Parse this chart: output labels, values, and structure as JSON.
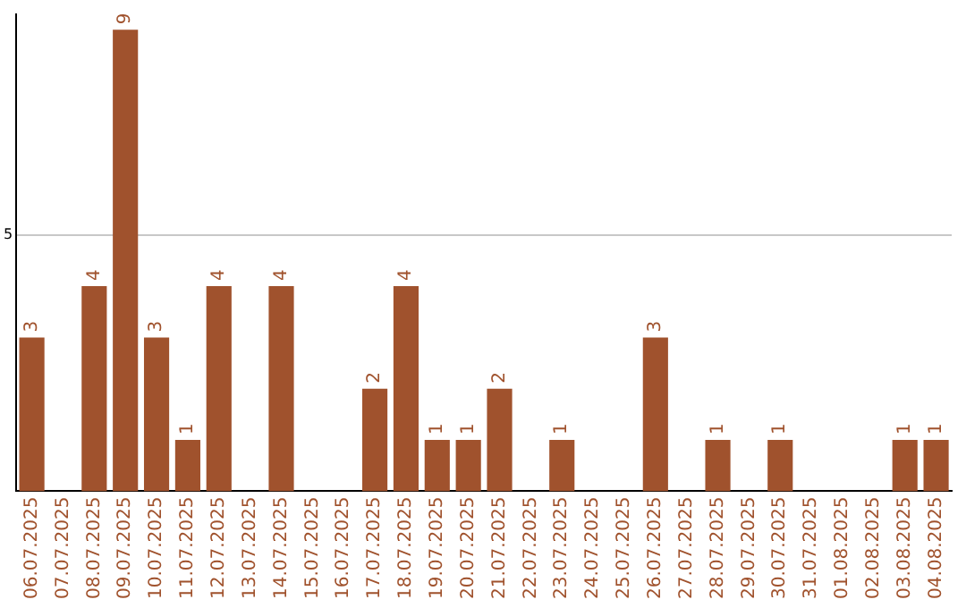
{
  "chart_data": {
    "type": "bar",
    "categories": [
      "06.07.2025",
      "07.07.2025",
      "08.07.2025",
      "09.07.2025",
      "10.07.2025",
      "11.07.2025",
      "12.07.2025",
      "13.07.2025",
      "14.07.2025",
      "15.07.2025",
      "16.07.2025",
      "17.07.2025",
      "18.07.2025",
      "19.07.2025",
      "20.07.2025",
      "21.07.2025",
      "22.07.2025",
      "23.07.2025",
      "24.07.2025",
      "25.07.2025",
      "26.07.2025",
      "27.07.2025",
      "28.07.2025",
      "29.07.2025",
      "30.07.2025",
      "31.07.2025",
      "01.08.2025",
      "02.08.2025",
      "03.08.2025",
      "04.08.2025"
    ],
    "values": [
      3,
      0,
      4,
      9,
      3,
      1,
      4,
      0,
      4,
      0,
      0,
      2,
      4,
      1,
      1,
      2,
      0,
      1,
      0,
      0,
      3,
      0,
      1,
      0,
      1,
      0,
      0,
      0,
      1,
      1
    ],
    "value_labels": [
      "3",
      null,
      "4",
      "9",
      "3",
      "1",
      "4",
      null,
      "4",
      null,
      null,
      "2",
      "4",
      "1",
      "1",
      "2",
      null,
      "1",
      null,
      null,
      "3",
      null,
      "1",
      null,
      "1",
      null,
      null,
      null,
      "1",
      "1"
    ],
    "color": "#a0522d",
    "ylim": [
      0,
      9.3
    ],
    "yticks": [
      5
    ],
    "grid": "y",
    "legend": false
  }
}
